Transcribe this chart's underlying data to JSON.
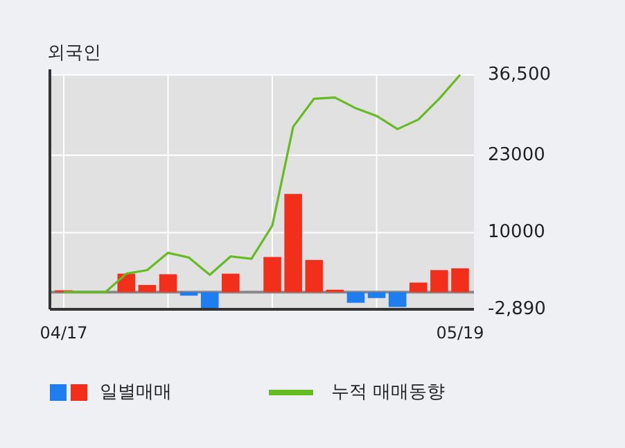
{
  "chart_data": {
    "type": "bar",
    "title": "외국인",
    "categories": [
      "04/17",
      null,
      null,
      null,
      null,
      null,
      null,
      null,
      null,
      null,
      null,
      null,
      null,
      null,
      null,
      null,
      null,
      null,
      null,
      "05/19"
    ],
    "series": [
      {
        "name": "일별매매",
        "colors": [
          "#f22f1a",
          "#f22f1a",
          "#f22f1a",
          "#f22f1a",
          "#f22f1a",
          "#f22f1a",
          "#1e7ef0",
          "#1e7ef0",
          "#f22f1a",
          "#f22f1a",
          "#f22f1a",
          "#f22f1a",
          "#f22f1a",
          "#f22f1a",
          "#1e7ef0",
          "#1e7ef0",
          "#1e7ef0",
          "#f22f1a",
          "#f22f1a",
          "#f22f1a"
        ],
        "values": [
          300,
          0,
          0,
          3100,
          1200,
          3000,
          -600,
          -2700,
          3100,
          0,
          5900,
          16500,
          5400,
          400,
          -1800,
          -1000,
          -2500,
          1600,
          3700,
          4000
        ]
      },
      {
        "name": "누적 매매동향",
        "type": "line",
        "color": "#66bb22",
        "values": [
          0,
          0,
          0,
          3100,
          3700,
          6600,
          5800,
          2900,
          6000,
          5600,
          11200,
          27800,
          32500,
          32700,
          30900,
          29600,
          27400,
          29000,
          32500,
          36500
        ]
      }
    ],
    "ylim": [
      -2890,
      36500
    ],
    "yticks": [
      {
        "value": -2890,
        "label": "-2,890"
      },
      10000,
      23000,
      {
        "value": 36500,
        "label": "36,500"
      }
    ],
    "ref_lines": [
      {
        "axis": "y",
        "value": 0,
        "color": "#888888"
      }
    ],
    "grid": true,
    "legend": "bottom",
    "line_style": "solid"
  }
}
